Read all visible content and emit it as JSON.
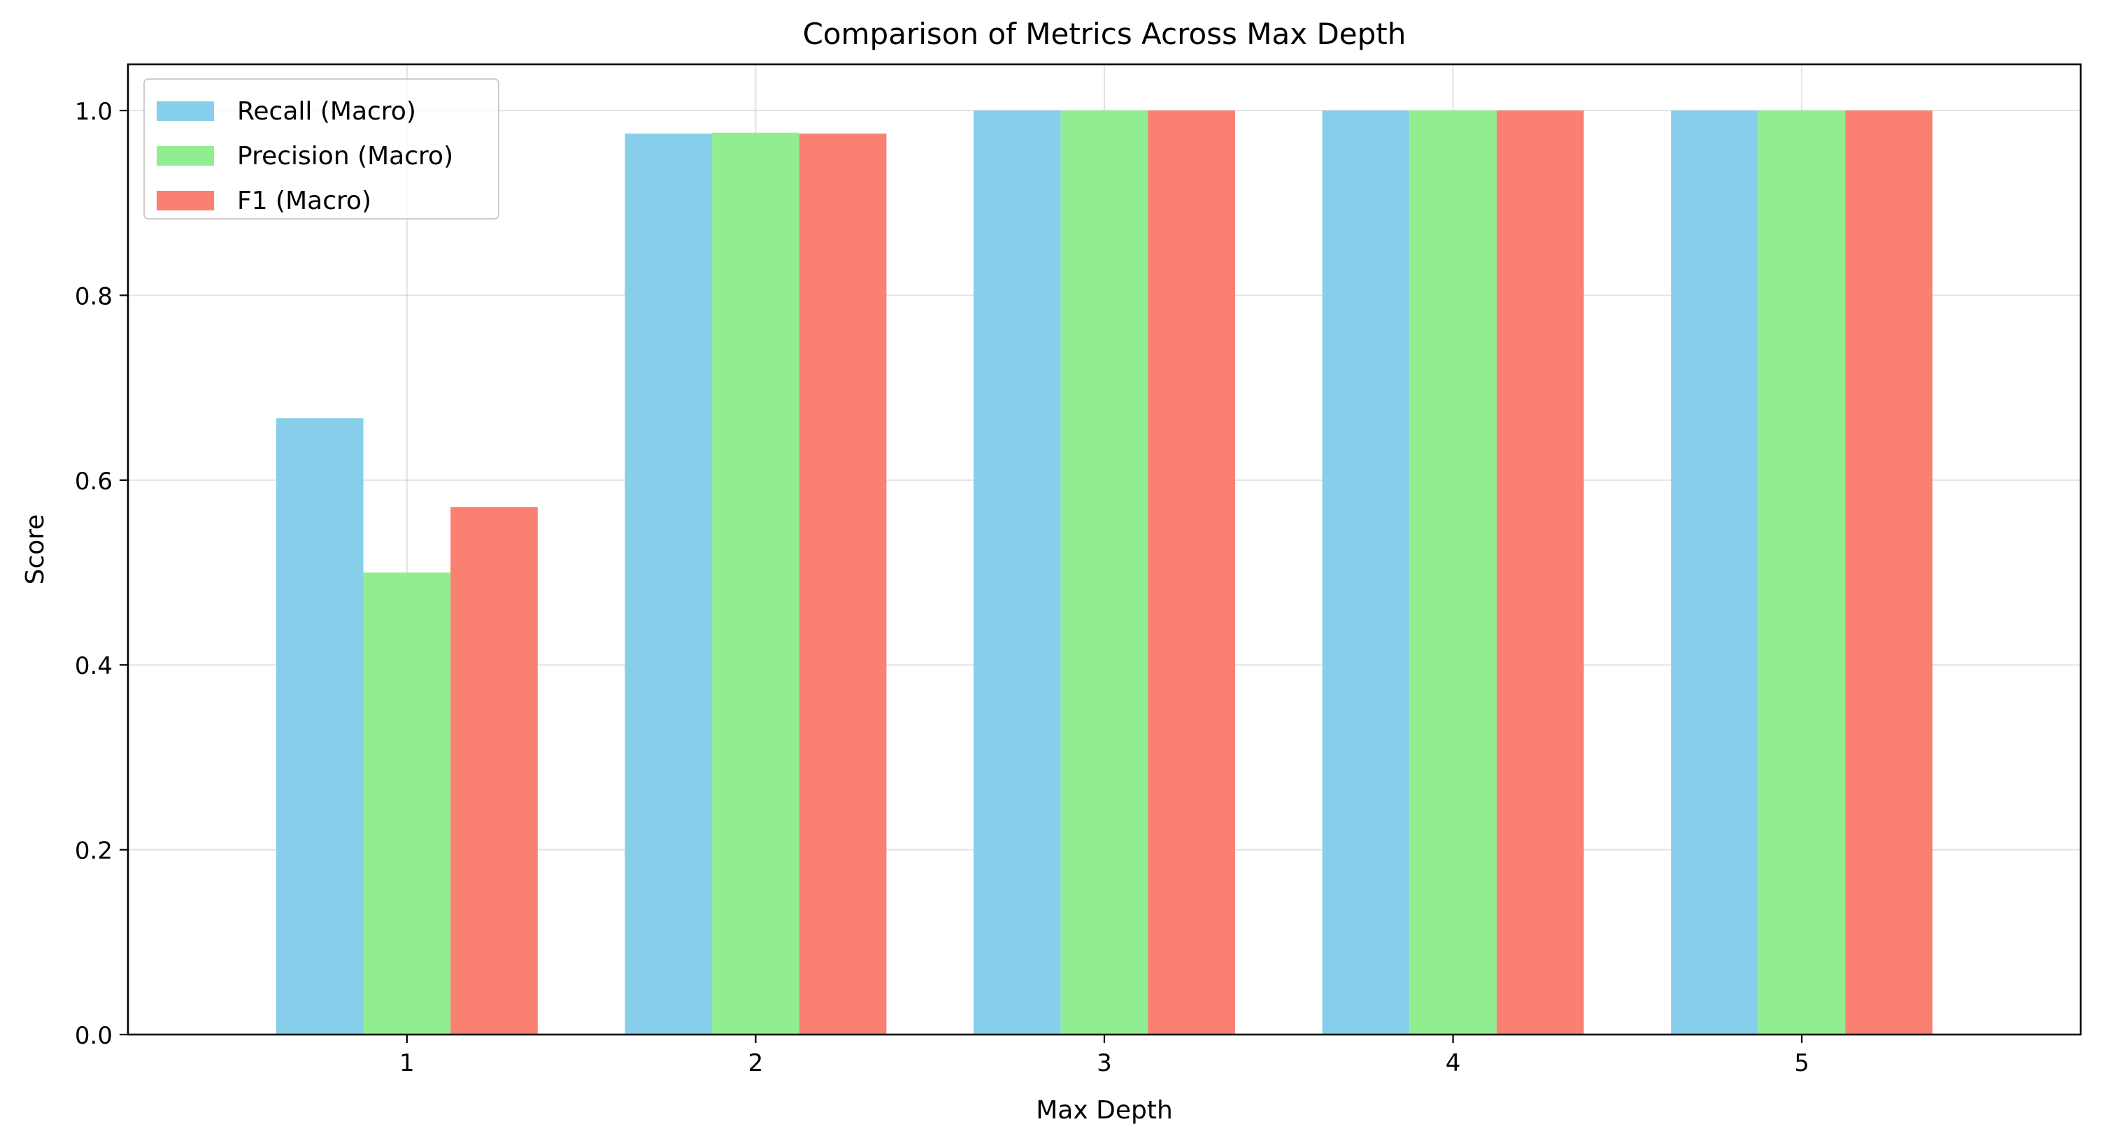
{
  "chart_data": {
    "type": "bar",
    "title": "Comparison of Metrics Across Max Depth",
    "xlabel": "Max Depth",
    "ylabel": "Score",
    "categories": [
      "1",
      "2",
      "3",
      "4",
      "5"
    ],
    "series": [
      {
        "name": "Recall (Macro)",
        "color": "#87ceeb",
        "values": [
          0.667,
          0.975,
          1.0,
          1.0,
          1.0
        ]
      },
      {
        "name": "Precision (Macro)",
        "color": "#90ee90",
        "values": [
          0.5,
          0.976,
          1.0,
          1.0,
          1.0
        ]
      },
      {
        "name": "F1 (Macro)",
        "color": "#fa8072",
        "values": [
          0.571,
          0.975,
          1.0,
          1.0,
          1.0
        ]
      }
    ],
    "ylim": [
      0,
      1.05
    ],
    "yticks": [
      "0.0",
      "0.2",
      "0.4",
      "0.6",
      "0.8",
      "1.0"
    ],
    "grid": true,
    "legend_position": "top-left"
  }
}
